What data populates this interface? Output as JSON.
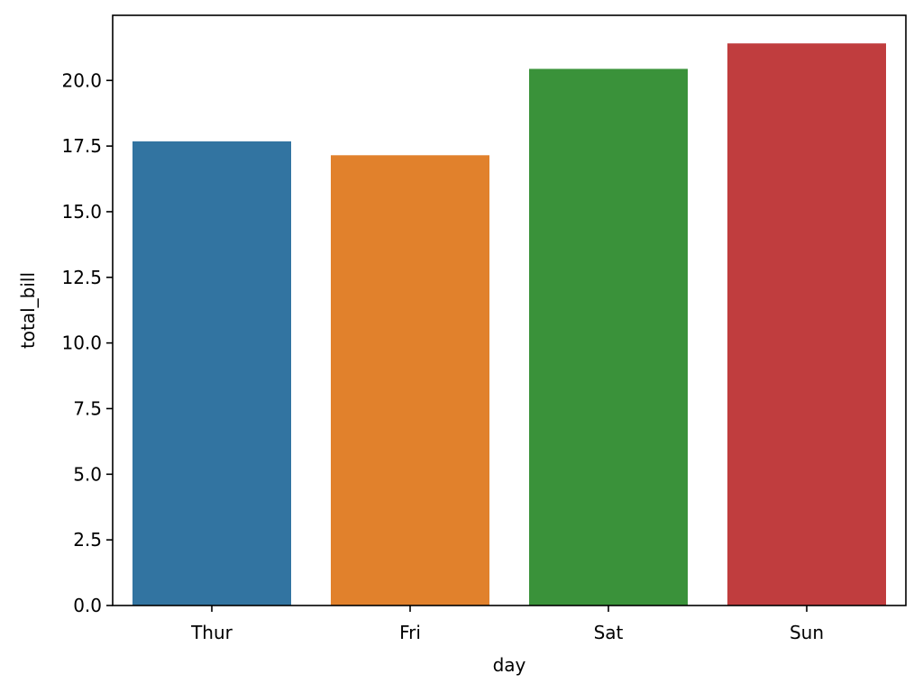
{
  "chart_data": {
    "type": "bar",
    "title": "",
    "xlabel": "day",
    "ylabel": "total_bill",
    "categories": [
      "Thur",
      "Fri",
      "Sat",
      "Sun"
    ],
    "values": [
      17.68,
      17.15,
      20.44,
      21.41
    ],
    "colors": [
      "#3274a1",
      "#e1812c",
      "#3a923a",
      "#c03d3e"
    ],
    "ylim": [
      0,
      22.48
    ],
    "yticks": [
      0.0,
      2.5,
      5.0,
      7.5,
      10.0,
      12.5,
      15.0,
      17.5,
      20.0
    ],
    "ytick_labels": [
      "0.0",
      "2.5",
      "5.0",
      "7.5",
      "10.0",
      "12.5",
      "15.0",
      "17.5",
      "20.0"
    ],
    "grid": false,
    "legend": "none"
  }
}
